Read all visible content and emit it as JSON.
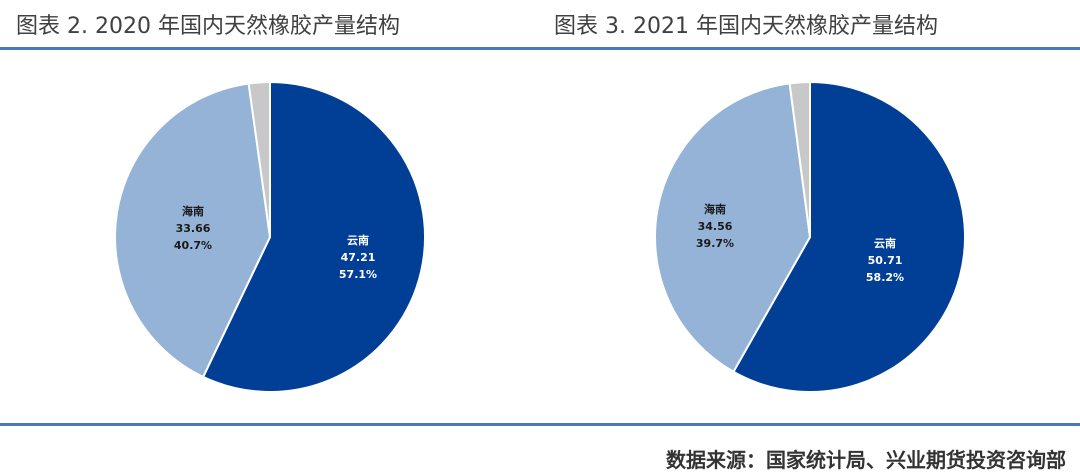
{
  "titles": {
    "left": "图表 2. 2020 年国内天然橡胶产量结构",
    "right": "图表 3. 2021 年国内天然橡胶产量结构"
  },
  "source": "数据来源：国家统计局、兴业期货投资咨询部",
  "colors": {
    "rule": "#4a7ab5",
    "yunnan": "#003f95",
    "hainan": "#95b3d7",
    "other": "#c8c8c8"
  },
  "chart_data": [
    {
      "type": "pie",
      "title": "图表 2. 2020 年国内天然橡胶产量结构",
      "slices": [
        {
          "name": "云南",
          "value": 47.21,
          "percent": "57.1%",
          "color": "#003f95",
          "label_color": "#ffffff"
        },
        {
          "name": "海南",
          "value": 33.66,
          "percent": "40.7%",
          "color": "#95b3d7",
          "label_color": "#1a1a1a"
        },
        {
          "name": "",
          "value": 1.82,
          "percent": "",
          "color": "#c8c8c8",
          "label_color": ""
        }
      ]
    },
    {
      "type": "pie",
      "title": "图表 3. 2021 年国内天然橡胶产量结构",
      "slices": [
        {
          "name": "云南",
          "value": 50.71,
          "percent": "58.2%",
          "color": "#003f95",
          "label_color": "#ffffff"
        },
        {
          "name": "海南",
          "value": 34.56,
          "percent": "39.7%",
          "color": "#95b3d7",
          "label_color": "#1a1a1a"
        },
        {
          "name": "",
          "value": 1.83,
          "percent": "",
          "color": "#c8c8c8",
          "label_color": ""
        }
      ]
    }
  ]
}
